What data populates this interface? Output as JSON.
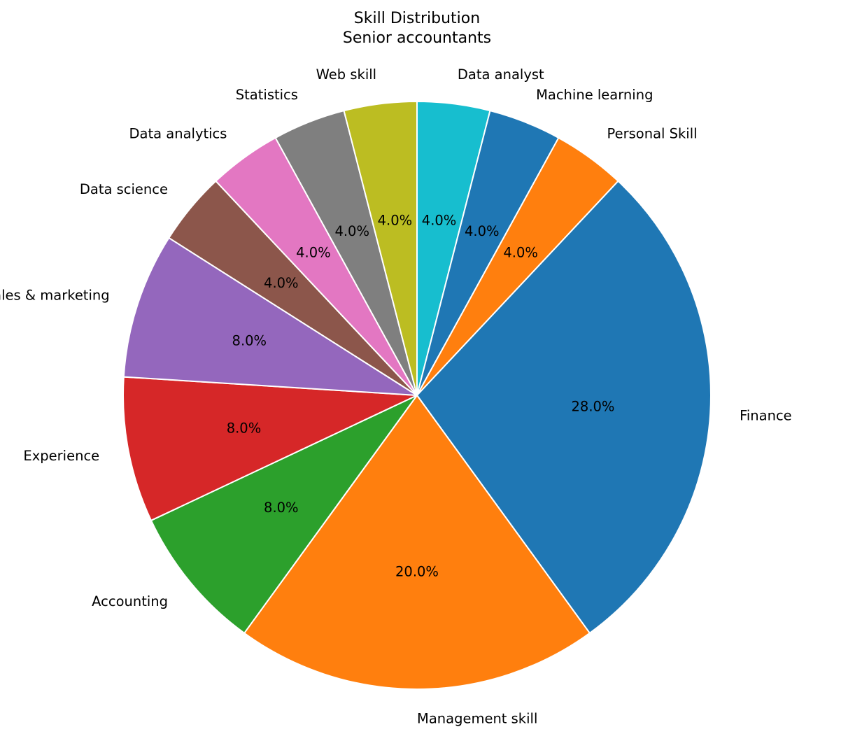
{
  "chart_data": {
    "type": "pie",
    "title": "Skill Distribution",
    "subtitle": "Senior accountants",
    "start_angle_deg": 90,
    "direction": "clockwise",
    "slices": [
      {
        "label": "Data analyst",
        "value": 4.0,
        "pct_label": "4.0%",
        "color": "#17becf"
      },
      {
        "label": "Machine learning",
        "value": 4.0,
        "pct_label": "4.0%",
        "color": "#1f77b4"
      },
      {
        "label": "Personal Skill",
        "value": 4.0,
        "pct_label": "4.0%",
        "color": "#ff7f0e"
      },
      {
        "label": "Finance",
        "value": 28.0,
        "pct_label": "28.0%",
        "color": "#1f77b4"
      },
      {
        "label": "Management skill",
        "value": 20.0,
        "pct_label": "20.0%",
        "color": "#ff7f0e"
      },
      {
        "label": "Accounting",
        "value": 8.0,
        "pct_label": "8.0%",
        "color": "#2ca02c"
      },
      {
        "label": "Experience",
        "value": 8.0,
        "pct_label": "8.0%",
        "color": "#d62728"
      },
      {
        "label": "Sales & marketing",
        "value": 8.0,
        "pct_label": "8.0%",
        "color": "#9467bd"
      },
      {
        "label": "Data science",
        "value": 4.0,
        "pct_label": "4.0%",
        "color": "#8c564b"
      },
      {
        "label": "Data analytics",
        "value": 4.0,
        "pct_label": "4.0%",
        "color": "#e377c2"
      },
      {
        "label": "Statistics",
        "value": 4.0,
        "pct_label": "4.0%",
        "color": "#7f7f7f"
      },
      {
        "label": "Web skill",
        "value": 4.0,
        "pct_label": "4.0%",
        "color": "#bcbd22"
      }
    ]
  }
}
